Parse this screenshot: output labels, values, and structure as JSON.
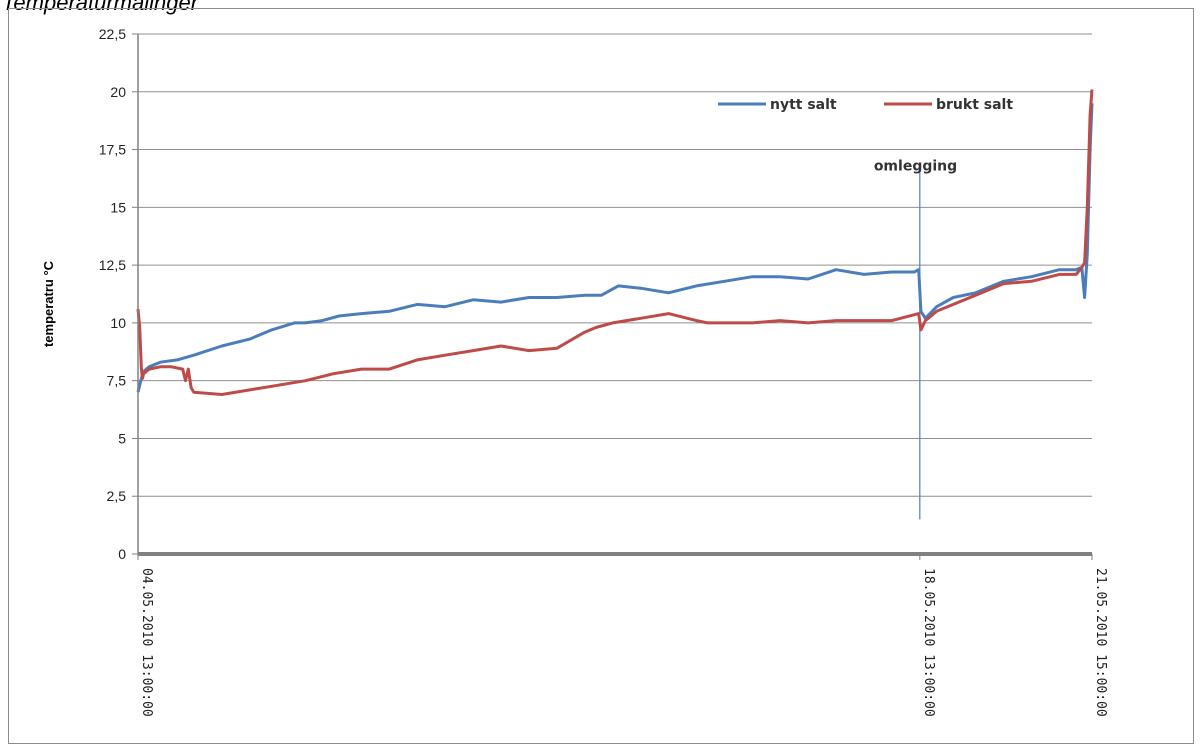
{
  "caption": "Temperaturmålinger",
  "chart_data": {
    "type": "line",
    "title": "",
    "xlabel": "",
    "ylabel": "temperatru °C",
    "ylim": [
      0,
      22.5
    ],
    "yticks": [
      "0",
      "2,5",
      "5",
      "7,5",
      "10",
      "12,5",
      "15",
      "17,5",
      "20",
      "22,5"
    ],
    "x_tick_labels": [
      "04.05.2010 13:00:00",
      "18.05.2010 13:00:00",
      "21.05.2010 15:00:00"
    ],
    "x_tick_positions": [
      0,
      14,
      17.0833
    ],
    "xlim": [
      0,
      17.0833
    ],
    "grid": true,
    "legend": "top-right",
    "annotation": {
      "text": "omlegging",
      "x": 14
    },
    "colors": {
      "nytt": "#4a7ebb",
      "brukt": "#be4b48",
      "grid": "#8f8f8f",
      "axis": "#808080"
    },
    "series": [
      {
        "name": "nytt salt",
        "x": [
          0,
          0.05,
          0.1,
          0.2,
          0.4,
          0.7,
          1.0,
          1.5,
          2.0,
          2.4,
          2.8,
          3.0,
          3.3,
          3.6,
          4.0,
          4.5,
          5.0,
          5.5,
          6.0,
          6.5,
          7.0,
          7.5,
          8.0,
          8.3,
          8.6,
          9.0,
          9.5,
          10.0,
          10.5,
          11.0,
          11.5,
          12.0,
          12.5,
          13.0,
          13.5,
          13.9,
          13.98,
          14.02,
          14.1,
          14.3,
          14.6,
          15.0,
          15.5,
          16.0,
          16.5,
          16.8,
          16.9,
          16.95,
          17.0,
          17.05,
          17.083
        ],
        "y": [
          7.0,
          7.5,
          7.9,
          8.1,
          8.3,
          8.4,
          8.6,
          9.0,
          9.3,
          9.7,
          10.0,
          10.0,
          10.1,
          10.3,
          10.4,
          10.5,
          10.8,
          10.7,
          11.0,
          10.9,
          11.1,
          11.1,
          11.2,
          11.2,
          11.6,
          11.5,
          11.3,
          11.6,
          11.8,
          12.0,
          12.0,
          11.9,
          12.3,
          12.1,
          12.2,
          12.2,
          12.3,
          10.5,
          10.2,
          10.7,
          11.1,
          11.3,
          11.8,
          12.0,
          12.3,
          12.3,
          12.4,
          11.1,
          13.0,
          17.5,
          19.5
        ]
      },
      {
        "name": "brukt salt",
        "x": [
          0,
          0.03,
          0.06,
          0.08,
          0.1,
          0.2,
          0.4,
          0.6,
          0.8,
          0.85,
          0.9,
          0.95,
          1.0,
          1.5,
          2.0,
          2.5,
          3.0,
          3.5,
          4.0,
          4.5,
          5.0,
          5.5,
          6.0,
          6.5,
          7.0,
          7.5,
          8.0,
          8.2,
          8.5,
          9.0,
          9.5,
          10.0,
          10.2,
          10.5,
          11.0,
          11.5,
          12.0,
          12.5,
          13.0,
          13.5,
          13.98,
          14.02,
          14.1,
          14.3,
          14.6,
          15.0,
          15.5,
          16.0,
          16.5,
          16.8,
          16.9,
          16.95,
          17.0,
          17.05,
          17.083
        ],
        "y": [
          10.6,
          9.8,
          8.0,
          7.6,
          7.8,
          8.0,
          8.1,
          8.1,
          8.0,
          7.5,
          8.0,
          7.2,
          7.0,
          6.9,
          7.1,
          7.3,
          7.5,
          7.8,
          8.0,
          8.0,
          8.4,
          8.6,
          8.8,
          9.0,
          8.8,
          8.9,
          9.6,
          9.8,
          10.0,
          10.2,
          10.4,
          10.1,
          10.0,
          10.0,
          10.0,
          10.1,
          10.0,
          10.1,
          10.1,
          10.1,
          10.4,
          9.7,
          10.1,
          10.5,
          10.8,
          11.2,
          11.7,
          11.8,
          12.1,
          12.1,
          12.4,
          12.6,
          15.0,
          19.0,
          20.1
        ]
      }
    ]
  }
}
